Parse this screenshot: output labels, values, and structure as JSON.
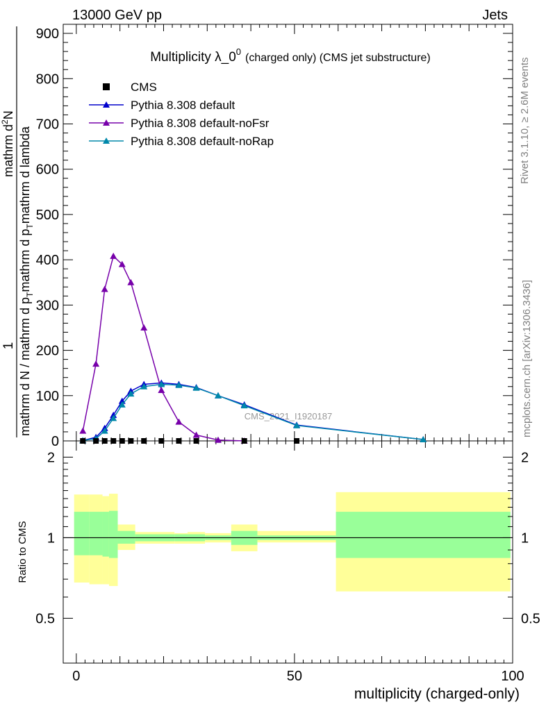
{
  "header": {
    "left": "13000 GeV pp",
    "right": "Jets"
  },
  "side": {
    "rivet": "Rivet 3.1.10, ≥ 2.6M events",
    "mcplots": "mcplots.cern.ch [arXiv:1306.3436]"
  },
  "main_panel": {
    "title_main": "Multiplicity λ_0",
    "title_sup": "0",
    "title_sub": "(charged only) (CMS jet substructure)",
    "ylabel_top": "1",
    "ylabel_bottom": "mathrm d N / mathrm d p",
    "ylabel_bottom_sub": "T",
    "ylabel_bottom2": "mathrm d N",
    "ylabel_num": "mathrm d",
    "ylabel_num_sup": "2",
    "ylabel_num2": "N",
    "ylabel_den": "mathrm d p",
    "ylabel_den_sub": "T",
    "ylabel_den2": "mathrm d lambda",
    "watermark": "CMS_2021_I1920187"
  },
  "ratio_panel": {
    "ylabel": "Ratio to CMS"
  },
  "xlabel": "multiplicity (charged-only)",
  "colors": {
    "default": "#0000cc",
    "noFsr": "#7700aa",
    "noRap": "#0088aa",
    "band_inner": "#99ff99",
    "band_outer": "#ffff99"
  },
  "chart_data": {
    "type": "line",
    "xlim": [
      -3,
      100
    ],
    "ylim": [
      0,
      920
    ],
    "ratio_ylim": [
      0.34,
      2.3
    ],
    "main_ticks": [
      0,
      100,
      200,
      300,
      400,
      500,
      600,
      700,
      800,
      900
    ],
    "x_ticks": [
      0,
      50,
      100
    ],
    "ratio_ticks": [
      0.5,
      1,
      2
    ],
    "legend": [
      {
        "label": "CMS",
        "key": "cms"
      },
      {
        "label": "Pythia 8.308 default",
        "key": "default"
      },
      {
        "label": "Pythia 8.308 default-noFsr",
        "key": "noFsr"
      },
      {
        "label": "Pythia 8.308 default-noRap",
        "key": "noRap"
      }
    ],
    "cms": {
      "x": [
        1.5,
        4.5,
        6.5,
        8.5,
        10.5,
        12.5,
        15.5,
        19.5,
        23.5,
        27.5,
        38.5,
        50.5
      ],
      "y": [
        0,
        0,
        0,
        0,
        0,
        0,
        0,
        0,
        0,
        0,
        0,
        0
      ]
    },
    "series": [
      {
        "name": "Pythia 8.308 default",
        "key": "default",
        "x": [
          1.5,
          4.5,
          6.5,
          8.5,
          10.5,
          12.5,
          15.5,
          19.5,
          23.5,
          27.5,
          32.5,
          38.5,
          50.5,
          79.5
        ],
        "y": [
          1,
          8,
          28,
          57,
          88,
          110,
          125,
          128,
          125,
          118,
          100,
          80,
          35,
          3
        ]
      },
      {
        "name": "Pythia 8.308 default-noFsr",
        "key": "noFsr",
        "x": [
          1.5,
          4.5,
          6.5,
          8.5,
          10.5,
          12.5,
          15.5,
          19.5,
          23.5,
          27.5,
          32.5,
          38.5
        ],
        "y": [
          22,
          170,
          335,
          408,
          390,
          350,
          250,
          112,
          42,
          13,
          2,
          0
        ]
      },
      {
        "name": "Pythia 8.308 default-noRap",
        "key": "noRap",
        "x": [
          1.5,
          4.5,
          6.5,
          8.5,
          10.5,
          12.5,
          15.5,
          19.5,
          23.5,
          27.5,
          32.5,
          38.5,
          50.5,
          79.5
        ],
        "y": [
          1,
          5,
          22,
          50,
          80,
          104,
          120,
          125,
          123,
          117,
          100,
          78,
          34,
          3
        ]
      }
    ],
    "ratio_bands": [
      {
        "x0": -0.5,
        "x1": 3.0,
        "in_lo": 0.86,
        "in_hi": 1.25,
        "out_lo": 0.68,
        "out_hi": 1.45
      },
      {
        "x0": 3.0,
        "x1": 6.0,
        "in_lo": 0.86,
        "in_hi": 1.25,
        "out_lo": 0.67,
        "out_hi": 1.45
      },
      {
        "x0": 6.0,
        "x1": 7.5,
        "in_lo": 0.85,
        "in_hi": 1.25,
        "out_lo": 0.67,
        "out_hi": 1.43
      },
      {
        "x0": 7.5,
        "x1": 9.5,
        "in_lo": 0.84,
        "in_hi": 1.26,
        "out_lo": 0.66,
        "out_hi": 1.46
      },
      {
        "x0": 9.5,
        "x1": 13.5,
        "in_lo": 0.95,
        "in_hi": 1.06,
        "out_lo": 0.9,
        "out_hi": 1.12
      },
      {
        "x0": 13.5,
        "x1": 22.5,
        "in_lo": 0.97,
        "in_hi": 1.03,
        "out_lo": 0.95,
        "out_hi": 1.05
      },
      {
        "x0": 22.5,
        "x1": 25.5,
        "in_lo": 0.97,
        "in_hi": 1.03,
        "out_lo": 0.95,
        "out_hi": 1.04
      },
      {
        "x0": 25.5,
        "x1": 29.5,
        "in_lo": 0.97,
        "in_hi": 1.03,
        "out_lo": 0.95,
        "out_hi": 1.05
      },
      {
        "x0": 29.5,
        "x1": 35.5,
        "in_lo": 0.98,
        "in_hi": 1.02,
        "out_lo": 0.96,
        "out_hi": 1.04
      },
      {
        "x0": 35.5,
        "x1": 41.5,
        "in_lo": 0.94,
        "in_hi": 1.06,
        "out_lo": 0.89,
        "out_hi": 1.12
      },
      {
        "x0": 41.5,
        "x1": 59.5,
        "in_lo": 0.98,
        "in_hi": 1.02,
        "out_lo": 0.96,
        "out_hi": 1.06
      },
      {
        "x0": 59.5,
        "x1": 99.5,
        "in_lo": 0.84,
        "in_hi": 1.25,
        "out_lo": 0.63,
        "out_hi": 1.48
      }
    ]
  }
}
